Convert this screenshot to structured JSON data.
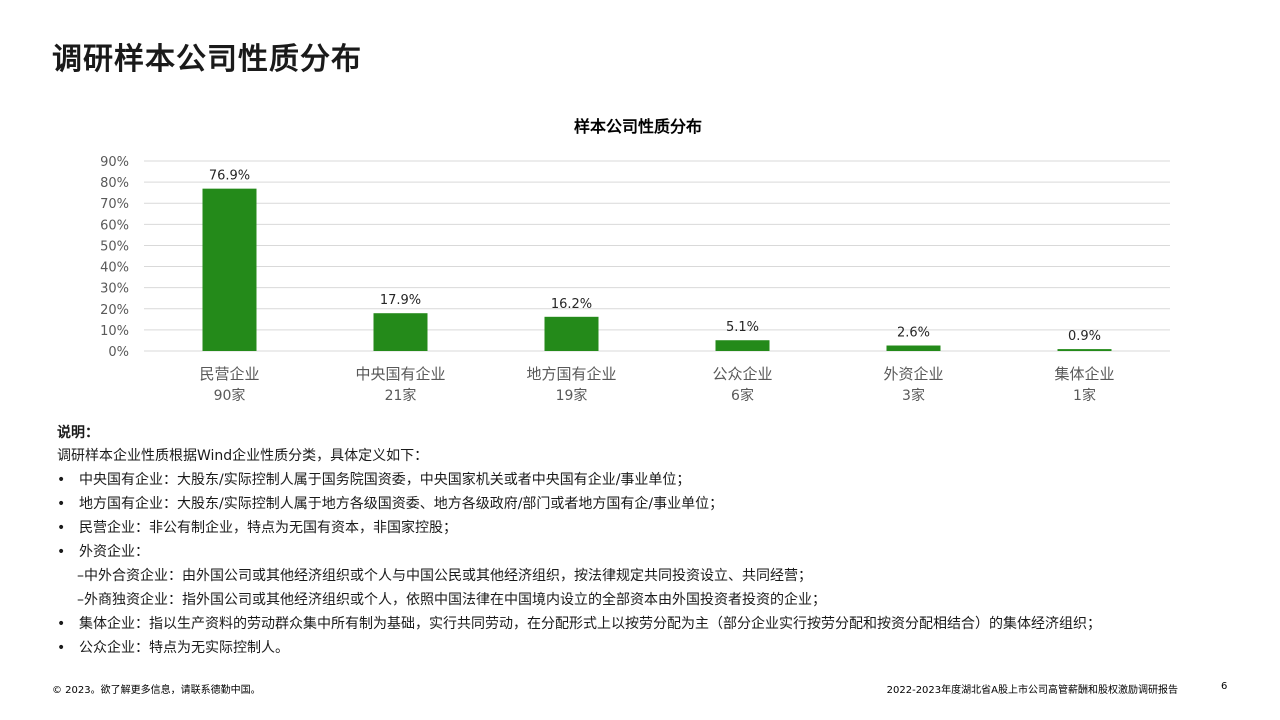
{
  "page": {
    "title": "调研样本公司性质分布"
  },
  "chart_data": {
    "type": "bar",
    "title": "样本公司性质分布",
    "categories": [
      "民营企业",
      "中央国有企业",
      "地方国有企业",
      "公众企业",
      "外资企业",
      "集体企业"
    ],
    "counts": [
      "90家",
      "21家",
      "19家",
      "6家",
      "3家",
      "1家"
    ],
    "values": [
      76.9,
      17.9,
      16.2,
      5.1,
      2.6,
      0.9
    ],
    "value_labels": [
      "76.9%",
      "17.9%",
      "16.2%",
      "5.1%",
      "2.6%",
      "0.9%"
    ],
    "yticks": [
      "0%",
      "10%",
      "20%",
      "30%",
      "40%",
      "50%",
      "60%",
      "70%",
      "80%",
      "90%"
    ],
    "ylim": [
      0,
      90
    ],
    "xlabel": "",
    "ylabel": "",
    "grid": true,
    "legend": "none",
    "bar_color": "#248a1a",
    "grid_color": "#d9d9d9"
  },
  "notes": {
    "heading": "说明：",
    "intro": "调研样本企业性质根据Wind企业性质分类，具体定义如下：",
    "bullet_symbol": "•",
    "items": [
      {
        "type": "bullet",
        "text": "中央国有企业：大股东/实际控制人属于国务院国资委，中央国家机关或者中央国有企业/事业单位；"
      },
      {
        "type": "bullet",
        "text": "地方国有企业：大股东/实际控制人属于地方各级国资委、地方各级政府/部门或者地方国有企/事业单位；"
      },
      {
        "type": "bullet",
        "text": "民营企业：非公有制企业，特点为无国有资本，非国家控股；"
      },
      {
        "type": "bullet",
        "text": "外资企业："
      },
      {
        "type": "sub",
        "text": "–中外合资企业：由外国公司或其他经济组织或个人与中国公民或其他经济组织，按法律规定共同投资设立、共同经营；"
      },
      {
        "type": "sub",
        "text": "–外商独资企业：指外国公司或其他经济组织或个人，依照中国法律在中国境内设立的全部资本由外国投资者投资的企业；"
      },
      {
        "type": "bullet",
        "text": "集体企业：指以生产资料的劳动群众集中所有制为基础，实行共同劳动，在分配形式上以按劳分配为主（部分企业实行按劳分配和按资分配相结合）的集体经济组织；"
      },
      {
        "type": "bullet",
        "text": "公众企业：特点为无实际控制人。"
      }
    ]
  },
  "footer": {
    "copyright": "© 2023。欲了解更多信息，请联系德勤中国。",
    "report_title": "2022-2023年度湖北省A股上市公司高管薪酬和股权激励调研报告",
    "page_number": "6"
  }
}
